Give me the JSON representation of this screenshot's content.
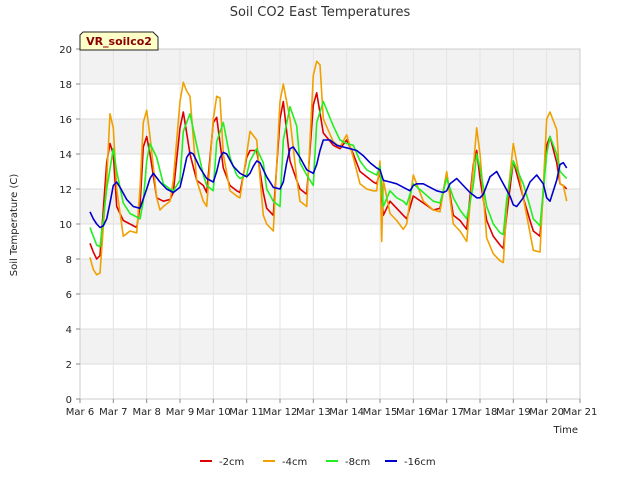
{
  "chart_data": {
    "type": "line",
    "title": "Soil CO2 East Temperatures",
    "xlabel": "Time",
    "ylabel": "Soil Temperature (C)",
    "badge": "VR_soilco2",
    "xlim": [
      6,
      21
    ],
    "ylim": [
      0,
      20
    ],
    "x_ticks": [
      6,
      7,
      8,
      9,
      10,
      11,
      12,
      13,
      14,
      15,
      16,
      17,
      18,
      19,
      20,
      21
    ],
    "x_tick_labels": [
      "Mar 6",
      "Mar 7",
      "Mar 8",
      "Mar 9",
      "Mar 10",
      "Mar 11",
      "Mar 12",
      "Mar 13",
      "Mar 14",
      "Mar 15",
      "Mar 16",
      "Mar 17",
      "Mar 18",
      "Mar 19",
      "Mar 20",
      "Mar 21"
    ],
    "y_ticks": [
      0,
      2,
      4,
      6,
      8,
      10,
      12,
      14,
      16,
      18,
      20
    ],
    "y_tick_labels": [
      "0",
      "2",
      "4",
      "6",
      "8",
      "10",
      "12",
      "14",
      "16",
      "18",
      "20"
    ],
    "grid": true,
    "banded_background": true,
    "legend_position": "bottom-center",
    "series": [
      {
        "name": "-2cm",
        "color": "#dd0000",
        "x": [
          6.3,
          6.4,
          6.5,
          6.6,
          6.8,
          6.9,
          7.0,
          7.1,
          7.3,
          7.5,
          7.7,
          7.8,
          7.9,
          8.0,
          8.1,
          8.3,
          8.5,
          8.7,
          8.8,
          9.0,
          9.1,
          9.3,
          9.5,
          9.7,
          9.8,
          10.0,
          10.1,
          10.3,
          10.5,
          10.7,
          10.8,
          11.0,
          11.1,
          11.3,
          11.5,
          11.6,
          11.8,
          12.0,
          12.1,
          12.3,
          12.5,
          12.6,
          12.8,
          13.0,
          13.1,
          13.3,
          13.6,
          13.8,
          14.0,
          14.2,
          14.4,
          14.6,
          14.8,
          14.9,
          15.0,
          15.1,
          15.3,
          15.5,
          15.7,
          15.8,
          16.0,
          16.3,
          16.6,
          16.8,
          17.0,
          17.2,
          17.4,
          17.6,
          17.8,
          17.9,
          18.0,
          18.2,
          18.4,
          18.6,
          18.7,
          18.8,
          19.0,
          19.3,
          19.5,
          19.6,
          19.8,
          20.0,
          20.1,
          20.3,
          20.4,
          20.5,
          20.6
        ],
        "values": [
          8.9,
          8.4,
          8.0,
          8.2,
          13.5,
          14.6,
          14.0,
          11.0,
          10.2,
          10.0,
          9.8,
          11.0,
          14.4,
          15.0,
          14.0,
          11.5,
          11.3,
          11.4,
          11.8,
          15.5,
          16.4,
          14.0,
          12.5,
          12.2,
          11.8,
          15.8,
          16.1,
          13.2,
          12.2,
          11.9,
          11.8,
          13.8,
          14.2,
          14.2,
          11.8,
          10.9,
          10.5,
          16.0,
          17.0,
          13.6,
          12.5,
          12.0,
          11.7,
          16.8,
          17.5,
          15.2,
          14.5,
          14.3,
          14.8,
          14.0,
          13.0,
          12.7,
          12.4,
          12.3,
          13.0,
          10.5,
          11.3,
          10.9,
          10.5,
          10.3,
          11.6,
          11.2,
          10.8,
          10.9,
          12.9,
          10.5,
          10.2,
          9.7,
          13.4,
          14.2,
          12.6,
          10.2,
          9.3,
          8.8,
          8.6,
          10.5,
          13.6,
          11.5,
          10.2,
          9.6,
          9.3,
          14.5,
          15.0,
          13.5,
          12.3,
          12.2,
          12.0
        ]
      },
      {
        "name": "-4cm",
        "color": "#f0a000",
        "x": [
          6.3,
          6.4,
          6.5,
          6.6,
          6.8,
          6.9,
          7.0,
          7.1,
          7.3,
          7.5,
          7.7,
          7.8,
          7.9,
          8.0,
          8.1,
          8.3,
          8.4,
          8.5,
          8.7,
          8.8,
          9.0,
          9.1,
          9.2,
          9.3,
          9.5,
          9.7,
          9.8,
          10.0,
          10.1,
          10.2,
          10.3,
          10.5,
          10.7,
          10.8,
          11.0,
          11.1,
          11.3,
          11.5,
          11.6,
          11.8,
          12.0,
          12.1,
          12.3,
          12.5,
          12.6,
          12.8,
          13.0,
          13.1,
          13.2,
          13.3,
          13.6,
          13.8,
          14.0,
          14.2,
          14.4,
          14.6,
          14.8,
          14.9,
          15.0,
          15.05,
          15.1,
          15.3,
          15.5,
          15.7,
          15.8,
          16.0,
          16.3,
          16.6,
          16.8,
          17.0,
          17.2,
          17.4,
          17.6,
          17.8,
          17.9,
          18.0,
          18.2,
          18.4,
          18.6,
          18.7,
          18.8,
          19.0,
          19.3,
          19.5,
          19.6,
          19.8,
          20.0,
          20.1,
          20.3,
          20.4,
          20.5,
          20.6
        ],
        "values": [
          8.1,
          7.4,
          7.1,
          7.2,
          12.5,
          16.3,
          15.5,
          12.0,
          9.3,
          9.6,
          9.5,
          12.0,
          15.8,
          16.5,
          15.0,
          11.5,
          10.8,
          11.0,
          11.3,
          12.5,
          17.0,
          18.1,
          17.6,
          17.3,
          12.5,
          11.3,
          11.0,
          16.0,
          17.3,
          17.2,
          14.0,
          11.9,
          11.6,
          11.5,
          14.0,
          15.3,
          14.8,
          10.5,
          10.0,
          9.6,
          17.0,
          18.0,
          16.0,
          12.6,
          11.3,
          11.0,
          18.5,
          19.3,
          19.1,
          16.0,
          14.7,
          14.4,
          15.1,
          13.8,
          12.3,
          12.0,
          11.9,
          11.9,
          13.6,
          9.0,
          12.5,
          10.6,
          10.2,
          9.7,
          10.0,
          12.8,
          11.3,
          10.8,
          10.7,
          13.0,
          10.0,
          9.6,
          9.0,
          13.2,
          15.5,
          14.0,
          9.2,
          8.3,
          7.9,
          7.8,
          11.0,
          14.6,
          11.5,
          9.5,
          8.5,
          8.4,
          16.0,
          16.4,
          15.4,
          12.3,
          12.2,
          11.3
        ]
      },
      {
        "name": "-8cm",
        "color": "#22ee22",
        "x": [
          6.3,
          6.4,
          6.5,
          6.6,
          6.8,
          7.0,
          7.1,
          7.3,
          7.5,
          7.7,
          7.8,
          7.9,
          8.0,
          8.1,
          8.3,
          8.5,
          8.7,
          8.8,
          9.0,
          9.1,
          9.3,
          9.5,
          9.7,
          9.8,
          10.0,
          10.1,
          10.3,
          10.5,
          10.7,
          10.8,
          11.0,
          11.1,
          11.3,
          11.5,
          11.6,
          11.8,
          12.0,
          12.1,
          12.3,
          12.5,
          12.6,
          12.8,
          13.0,
          13.1,
          13.3,
          13.6,
          13.8,
          14.0,
          14.2,
          14.4,
          14.6,
          14.8,
          14.9,
          15.0,
          15.1,
          15.3,
          15.5,
          15.7,
          15.8,
          16.0,
          16.3,
          16.6,
          16.8,
          17.0,
          17.2,
          17.4,
          17.6,
          17.8,
          17.9,
          18.0,
          18.2,
          18.4,
          18.6,
          18.7,
          18.8,
          19.0,
          19.3,
          19.5,
          19.6,
          19.8,
          20.0,
          20.1,
          20.3,
          20.4,
          20.5,
          20.6
        ],
        "values": [
          9.8,
          9.3,
          8.8,
          8.7,
          12.0,
          14.3,
          13.0,
          11.2,
          10.6,
          10.4,
          10.3,
          11.3,
          13.6,
          14.6,
          13.8,
          12.3,
          12.0,
          11.9,
          12.5,
          15.3,
          16.3,
          14.5,
          12.8,
          12.2,
          11.9,
          14.7,
          15.8,
          13.8,
          12.8,
          12.6,
          12.8,
          13.6,
          14.3,
          13.5,
          12.0,
          11.3,
          11.0,
          14.8,
          16.7,
          15.6,
          13.5,
          12.8,
          12.2,
          15.8,
          17.0,
          15.6,
          14.8,
          14.6,
          14.5,
          13.6,
          13.1,
          12.9,
          12.8,
          13.3,
          11.0,
          11.9,
          11.5,
          11.3,
          11.1,
          12.3,
          11.8,
          11.3,
          11.2,
          12.6,
          11.5,
          10.8,
          10.3,
          12.2,
          14.0,
          13.2,
          11.0,
          10.0,
          9.5,
          9.4,
          11.4,
          13.6,
          12.3,
          11.0,
          10.3,
          9.9,
          14.0,
          15.0,
          14.0,
          13.0,
          12.8,
          12.6
        ]
      },
      {
        "name": "-16cm",
        "color": "#0000cc",
        "x": [
          6.3,
          6.4,
          6.5,
          6.6,
          6.7,
          6.8,
          6.9,
          7.0,
          7.1,
          7.2,
          7.4,
          7.6,
          7.8,
          8.0,
          8.1,
          8.2,
          8.4,
          8.6,
          8.8,
          9.0,
          9.1,
          9.2,
          9.3,
          9.4,
          9.6,
          9.8,
          10.0,
          10.1,
          10.2,
          10.3,
          10.4,
          10.6,
          10.8,
          11.0,
          11.1,
          11.2,
          11.3,
          11.4,
          11.6,
          11.8,
          12.0,
          12.1,
          12.2,
          12.3,
          12.4,
          12.6,
          12.8,
          13.0,
          13.1,
          13.2,
          13.3,
          13.5,
          13.7,
          13.9,
          14.1,
          14.3,
          14.5,
          14.7,
          14.9,
          15.0,
          15.1,
          15.3,
          15.5,
          15.7,
          15.9,
          16.0,
          16.1,
          16.3,
          16.5,
          16.7,
          16.9,
          17.0,
          17.1,
          17.3,
          17.5,
          17.7,
          17.9,
          18.0,
          18.1,
          18.3,
          18.5,
          18.7,
          18.9,
          19.0,
          19.1,
          19.3,
          19.5,
          19.7,
          19.9,
          20.0,
          20.1,
          20.3,
          20.4,
          20.5,
          20.6
        ],
        "values": [
          10.7,
          10.3,
          10.0,
          9.8,
          9.9,
          10.3,
          11.2,
          12.2,
          12.4,
          12.1,
          11.4,
          11.0,
          10.9,
          12.0,
          12.6,
          12.9,
          12.4,
          12.0,
          11.8,
          12.1,
          12.9,
          13.8,
          14.1,
          14.0,
          13.2,
          12.6,
          12.4,
          13.0,
          13.8,
          14.1,
          14.0,
          13.3,
          12.9,
          12.7,
          12.9,
          13.3,
          13.6,
          13.5,
          12.7,
          12.1,
          12.0,
          12.4,
          13.5,
          14.3,
          14.4,
          13.8,
          13.1,
          12.9,
          13.4,
          14.2,
          14.8,
          14.8,
          14.5,
          14.4,
          14.3,
          14.2,
          13.9,
          13.5,
          13.2,
          13.1,
          12.5,
          12.4,
          12.3,
          12.1,
          11.9,
          12.2,
          12.3,
          12.3,
          12.1,
          11.9,
          11.8,
          11.9,
          12.3,
          12.6,
          12.2,
          11.8,
          11.5,
          11.5,
          11.7,
          12.7,
          13.0,
          12.3,
          11.6,
          11.1,
          11.0,
          11.5,
          12.4,
          12.8,
          12.3,
          11.5,
          11.3,
          12.5,
          13.4,
          13.5,
          13.2
        ]
      }
    ]
  }
}
